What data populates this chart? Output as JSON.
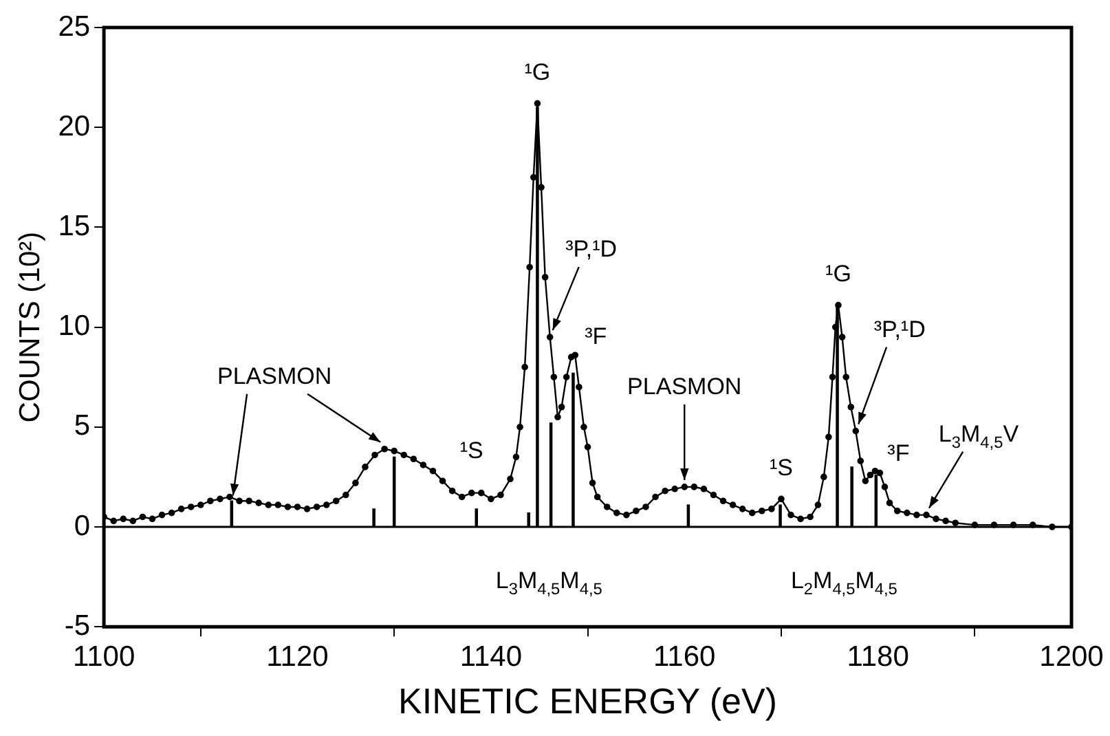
{
  "chart_data": {
    "type": "line",
    "xlabel": "KINETIC ENERGY (eV)",
    "ylabel": "COUNTS (10²)",
    "xlim": [
      1100,
      1200
    ],
    "xticks": [
      1100,
      1120,
      1140,
      1160,
      1180,
      1200
    ],
    "ylim": [
      -5,
      25
    ],
    "yticks": [
      -5,
      0,
      5,
      10,
      15,
      20,
      25
    ],
    "grid": false,
    "legend": false,
    "marker": "circle",
    "line_style": "solid",
    "ref_lines": [
      {
        "axis": "y",
        "value": 0,
        "color": "#000000"
      }
    ],
    "series": [
      {
        "color": "#000000",
        "x": [
          1100,
          1101,
          1102,
          1103,
          1104,
          1105,
          1106,
          1107,
          1108,
          1109,
          1110,
          1111,
          1112,
          1113,
          1114,
          1115,
          1116,
          1117,
          1118,
          1119,
          1120,
          1121,
          1122,
          1123,
          1124,
          1125,
          1126,
          1127,
          1128,
          1129,
          1130,
          1131,
          1132,
          1133,
          1134,
          1135,
          1136,
          1137,
          1138,
          1139,
          1140,
          1141,
          1142,
          1142.6,
          1143,
          1143.5,
          1144,
          1144.4,
          1144.8,
          1145.2,
          1145.6,
          1146.1,
          1146.5,
          1146.9,
          1147.3,
          1147.8,
          1148.3,
          1148.7,
          1149.1,
          1149.6,
          1150,
          1150.5,
          1151,
          1152,
          1153,
          1154,
          1155,
          1156,
          1157,
          1158,
          1159,
          1160,
          1161,
          1162,
          1163,
          1164,
          1165,
          1166,
          1167,
          1168,
          1169,
          1170,
          1171,
          1172,
          1173,
          1173.8,
          1174.4,
          1174.9,
          1175.3,
          1175.6,
          1175.9,
          1176.3,
          1176.7,
          1177.2,
          1177.7,
          1178.2,
          1178.7,
          1179.2,
          1179.7,
          1180.2,
          1180.7,
          1181.2,
          1182,
          1183,
          1184,
          1185,
          1186,
          1187,
          1188,
          1190,
          1192,
          1194,
          1196,
          1198,
          1200
        ],
        "values": [
          0.5,
          0.3,
          0.4,
          0.3,
          0.5,
          0.4,
          0.6,
          0.7,
          0.9,
          1.0,
          1.1,
          1.3,
          1.4,
          1.5,
          1.3,
          1.3,
          1.2,
          1.1,
          1.1,
          1.0,
          1.0,
          0.9,
          1.0,
          1.1,
          1.3,
          1.6,
          2.2,
          3.0,
          3.6,
          3.9,
          3.8,
          3.6,
          3.4,
          3.1,
          2.8,
          2.3,
          1.8,
          1.5,
          1.7,
          1.7,
          1.4,
          1.6,
          2.4,
          3.5,
          5.0,
          8.0,
          13.0,
          17.5,
          21.2,
          17.0,
          12.5,
          9.5,
          7.5,
          5.5,
          6.0,
          7.5,
          8.5,
          8.6,
          7.0,
          5.0,
          4.0,
          2.2,
          1.5,
          1.0,
          0.7,
          0.6,
          0.8,
          1.0,
          1.5,
          1.8,
          1.9,
          2.0,
          2.0,
          1.9,
          1.6,
          1.3,
          1.1,
          0.9,
          0.7,
          0.8,
          0.9,
          1.4,
          0.6,
          0.4,
          0.5,
          1.1,
          2.5,
          4.5,
          7.5,
          10.0,
          11.1,
          9.5,
          7.5,
          6.0,
          4.8,
          3.3,
          2.3,
          2.6,
          2.8,
          2.7,
          2.0,
          1.2,
          0.8,
          0.7,
          0.6,
          0.6,
          0.4,
          0.3,
          0.2,
          0.1,
          0.1,
          0.1,
          0.1,
          0.0,
          0.0
        ]
      },
      {
        "type": "bar",
        "color": "#000000",
        "x": [
          1113.2,
          1127.9,
          1130,
          1138.5,
          1143.9,
          1144.8,
          1146.2,
          1148.5,
          1160.4,
          1169.9,
          1175.8,
          1177.3,
          1179.8
        ],
        "values": [
          1.3,
          0.9,
          3.5,
          0.9,
          0.7,
          21.0,
          5.2,
          7.7,
          1.1,
          1.1,
          11.0,
          3.0,
          2.6
        ]
      }
    ],
    "annotations": [
      {
        "text": "PLASMON",
        "x": 1129,
        "y": 3.9
      },
      {
        "text": "¹G",
        "x": 1144.8,
        "y": 21.2
      },
      {
        "text": "³P,¹D",
        "x": 1146.1,
        "y": 9.5
      },
      {
        "text": "³F",
        "x": 1148.7,
        "y": 8.6
      },
      {
        "text": "¹S",
        "x": 1138,
        "y": 1.7
      },
      {
        "text": "PLASMON",
        "x": 1160,
        "y": 2.0
      },
      {
        "text": "¹S",
        "x": 1170,
        "y": 1.4
      },
      {
        "text": "¹G",
        "x": 1175.9,
        "y": 11.1
      },
      {
        "text": "³P,¹D",
        "x": 1177.7,
        "y": 4.8
      },
      {
        "text": "³F",
        "x": 1179.7,
        "y": 2.8
      },
      {
        "text": "L$_{3}$M$_{4,5}$V",
        "x": 1185,
        "y": 0.6
      },
      "L$_{3}$M$_{4,5}$M$_{4,5}$",
      "L$_{2}$M$_{4,5}$M$_{4,5}$"
    ]
  }
}
